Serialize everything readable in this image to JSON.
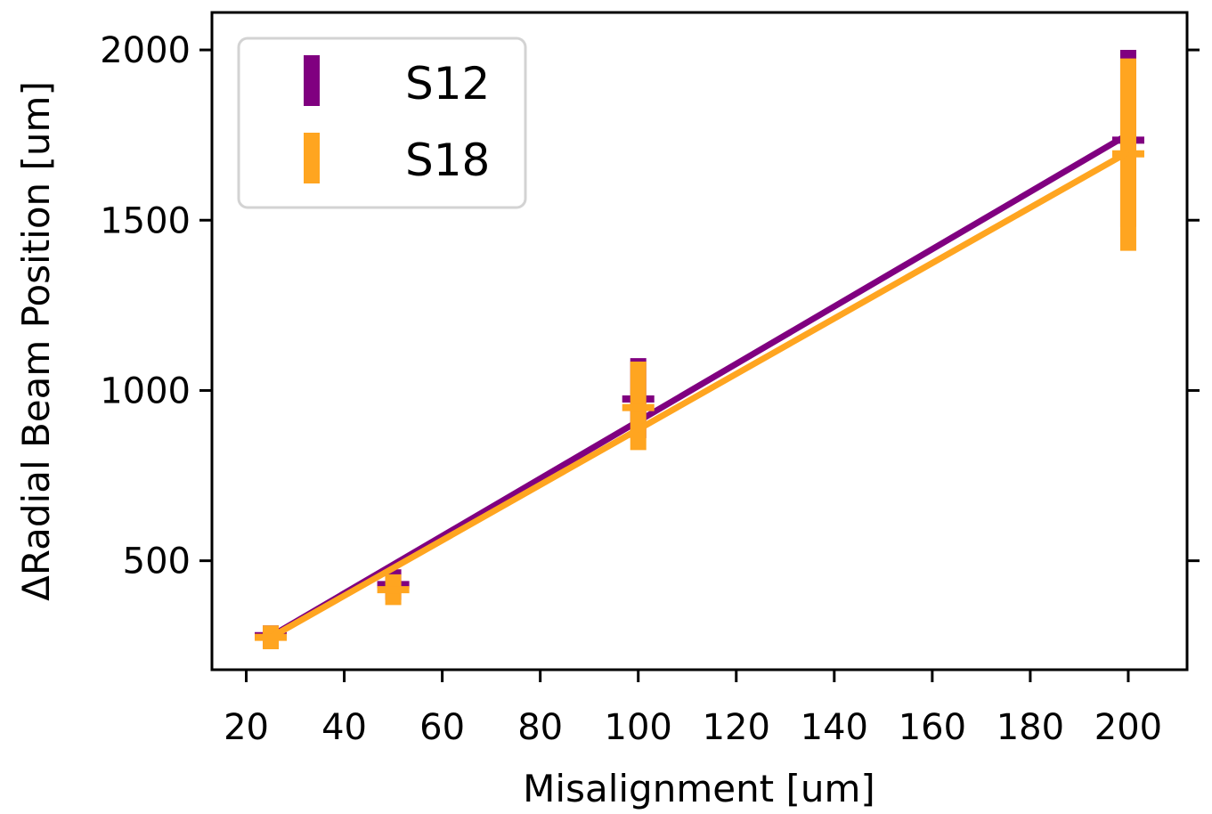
{
  "chart_data": {
    "type": "scatter",
    "xlabel": "Misalignment [um]",
    "ylabel": "ΔRadial Beam Position [um]",
    "xlim": [
      13,
      212
    ],
    "ylim": [
      180,
      2110
    ],
    "xticks": [
      20,
      40,
      60,
      80,
      100,
      120,
      140,
      160,
      180,
      200
    ],
    "yticks": [
      500,
      1000,
      1500,
      2000
    ],
    "grid": false,
    "legend_position": "top-left",
    "series": [
      {
        "name": "S12",
        "color": "#800080",
        "points": [
          {
            "x": 25,
            "y": 280,
            "ylow": 245,
            "yhigh": 310
          },
          {
            "x": 50,
            "y": 430,
            "ylow": 385,
            "yhigh": 475
          },
          {
            "x": 100,
            "y": 975,
            "ylow": 860,
            "yhigh": 1095
          },
          {
            "x": 200,
            "y": 1735,
            "ylow": 1480,
            "yhigh": 2000
          }
        ],
        "fit": [
          [
            25,
            278
          ],
          [
            200,
            1752
          ]
        ]
      },
      {
        "name": "S18",
        "color": "#FFA520",
        "points": [
          {
            "x": 25,
            "y": 275,
            "ylow": 240,
            "yhigh": 310
          },
          {
            "x": 50,
            "y": 415,
            "ylow": 370,
            "yhigh": 460
          },
          {
            "x": 100,
            "y": 950,
            "ylow": 825,
            "yhigh": 1085
          },
          {
            "x": 200,
            "y": 1695,
            "ylow": 1410,
            "yhigh": 1975
          }
        ],
        "fit": [
          [
            25,
            275
          ],
          [
            200,
            1700
          ]
        ]
      }
    ]
  }
}
